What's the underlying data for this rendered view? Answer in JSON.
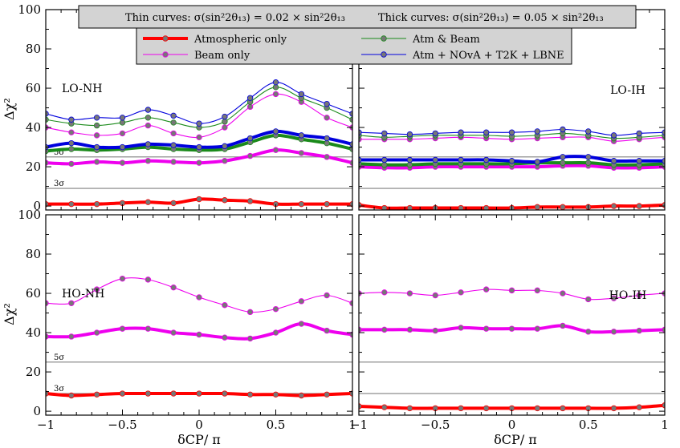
{
  "header": {
    "left_html": "Thin curves: σ(sin²2θ₁₃) = 0.02 × sin²2θ₁₃",
    "right_html": "Thick curves: σ(sin²2θ₁₃) = 0.05 × sin²2θ₁₃"
  },
  "legend": [
    "Atmospheric only",
    "Beam only",
    "Atm & Beam",
    "Atm + NOvA + T2K + LBNE"
  ],
  "axes": {
    "xlabel": "δCP/ π",
    "ylabel": "Δχ²",
    "xticks": [
      "−1",
      "−0.5",
      "0",
      "0.5",
      "1"
    ],
    "yticks": [
      "0",
      "20",
      "40",
      "60",
      "80",
      "100"
    ]
  },
  "colors": {
    "atm": "#ff0000",
    "beam": "#ee00ee",
    "atmbeam": "#1a8a1a",
    "all": "#0000dd",
    "marker_fill": "#777777",
    "header_bg": "#d3d3d3",
    "sigma_line": "#808080"
  },
  "chart_data": [
    {
      "type": "line",
      "panel_label": "LO-NH",
      "sigma_labels": [
        "5σ",
        "3σ"
      ],
      "sigma_levels": [
        25,
        9
      ],
      "x": [
        -1,
        -0.833,
        -0.667,
        -0.5,
        -0.333,
        -0.167,
        0,
        0.167,
        0.333,
        0.5,
        0.667,
        0.833,
        1
      ],
      "xlim": [
        -1,
        1
      ],
      "ylim": [
        -2,
        100
      ],
      "series": [
        {
          "name": "Atmospheric only",
          "key": "atm",
          "width": "thick",
          "values": [
            1,
            1,
            1,
            1.5,
            2,
            1.5,
            3.5,
            3,
            2.5,
            1,
            1,
            1,
            1
          ]
        },
        {
          "name": "Beam only",
          "key": "beam",
          "width": "thick",
          "values": [
            22,
            21.5,
            22.5,
            22,
            23,
            22.5,
            22,
            23,
            25.5,
            28.5,
            27,
            25,
            22
          ]
        },
        {
          "name": "Atm & Beam",
          "key": "atmbeam",
          "width": "thick",
          "values": [
            28,
            29,
            28.5,
            29,
            30,
            29,
            28.5,
            29,
            32.5,
            36,
            34,
            32,
            29
          ]
        },
        {
          "name": "Atm + NOvA + T2K + LBNE",
          "key": "all",
          "width": "thick",
          "values": [
            30,
            32,
            30,
            30,
            31.5,
            31,
            30,
            30.5,
            34.5,
            38,
            36,
            34.5,
            31.5
          ]
        },
        {
          "name": "Beam only",
          "key": "beam",
          "width": "thin",
          "values": [
            40,
            37.5,
            36,
            37,
            41,
            37,
            35,
            40,
            50.5,
            57,
            53,
            45,
            40
          ]
        },
        {
          "name": "Atm & Beam",
          "key": "atmbeam",
          "width": "thin",
          "values": [
            44,
            42,
            41,
            42.5,
            45,
            42.5,
            40,
            43,
            53,
            60.5,
            55,
            50,
            44
          ]
        },
        {
          "name": "Atm + NOvA + T2K + LBNE",
          "key": "all",
          "width": "thin",
          "values": [
            47,
            44,
            45,
            45,
            49,
            46,
            42,
            45.5,
            55,
            63,
            57,
            52,
            47
          ]
        }
      ]
    },
    {
      "type": "line",
      "panel_label": "LO-IH",
      "sigma_labels": [],
      "sigma_levels": [
        25,
        9
      ],
      "x": [
        -1,
        -0.833,
        -0.667,
        -0.5,
        -0.333,
        -0.167,
        0,
        0.167,
        0.333,
        0.5,
        0.667,
        0.833,
        1
      ],
      "xlim": [
        -1,
        1
      ],
      "ylim": [
        -2,
        100
      ],
      "series": [
        {
          "name": "Atmospheric only",
          "key": "atm",
          "width": "thick",
          "values": [
            0.5,
            -1,
            -1,
            -1,
            -1,
            -1,
            -1,
            -0.5,
            -0.5,
            -0.5,
            0,
            0,
            0.5
          ]
        },
        {
          "name": "Beam only",
          "key": "beam",
          "width": "thick",
          "values": [
            20,
            19.5,
            19.5,
            20,
            20,
            20,
            20,
            20,
            20.5,
            20.5,
            19.5,
            19.5,
            20
          ]
        },
        {
          "name": "Atm & Beam",
          "key": "atmbeam",
          "width": "thick",
          "values": [
            21.5,
            21,
            21,
            21.5,
            21.5,
            21.5,
            21.5,
            22,
            22,
            22,
            21,
            21,
            21.5
          ]
        },
        {
          "name": "Atm + NOvA + T2K + LBNE",
          "key": "all",
          "width": "thick",
          "values": [
            23.5,
            23.5,
            23.5,
            23.5,
            23.5,
            23.5,
            23,
            22.5,
            25,
            25,
            23,
            23,
            23
          ]
        },
        {
          "name": "Beam only",
          "key": "beam",
          "width": "thin",
          "values": [
            34,
            34,
            34,
            34.5,
            35,
            34.5,
            34,
            34.5,
            35,
            35,
            33,
            34,
            35
          ]
        },
        {
          "name": "Atm & Beam",
          "key": "atmbeam",
          "width": "thin",
          "values": [
            36,
            35,
            35.5,
            36,
            36,
            36,
            35.5,
            36,
            37,
            36,
            34.5,
            35,
            36
          ]
        },
        {
          "name": "Atm + NOvA + T2K + LBNE",
          "key": "all",
          "width": "thin",
          "values": [
            37.5,
            37,
            36.5,
            37,
            37.5,
            37.5,
            37.5,
            38,
            39,
            38,
            36,
            37,
            37.5
          ]
        }
      ]
    },
    {
      "type": "line",
      "panel_label": "HO-NH",
      "sigma_labels": [
        "5σ",
        "3σ"
      ],
      "sigma_levels": [
        25,
        9
      ],
      "x": [
        -1,
        -0.833,
        -0.667,
        -0.5,
        -0.333,
        -0.167,
        0,
        0.167,
        0.333,
        0.5,
        0.667,
        0.833,
        1
      ],
      "xlim": [
        -1,
        1
      ],
      "ylim": [
        -2,
        100
      ],
      "series": [
        {
          "name": "Atmospheric only",
          "key": "atm",
          "width": "thick",
          "values": [
            9,
            8,
            8.5,
            9,
            9,
            9,
            9,
            9,
            8.5,
            8.5,
            8,
            8.5,
            9
          ]
        },
        {
          "name": "Beam only",
          "key": "beam",
          "width": "thick",
          "values": [
            38,
            38,
            40,
            42,
            42,
            40,
            39,
            37.5,
            37,
            40,
            44.5,
            41,
            39
          ]
        },
        {
          "name": "Beam only",
          "key": "beam",
          "width": "thin",
          "values": [
            55,
            55,
            62,
            67.5,
            67,
            63,
            58,
            54,
            50.5,
            52,
            56,
            59,
            55
          ]
        }
      ]
    },
    {
      "type": "line",
      "panel_label": "HO-IH",
      "sigma_labels": [],
      "sigma_levels": [
        25,
        9
      ],
      "x": [
        -1,
        -0.833,
        -0.667,
        -0.5,
        -0.333,
        -0.167,
        0,
        0.167,
        0.333,
        0.5,
        0.667,
        0.833,
        1
      ],
      "xlim": [
        -1,
        1
      ],
      "ylim": [
        -2,
        100
      ],
      "series": [
        {
          "name": "Atmospheric only",
          "key": "atm",
          "width": "thick",
          "values": [
            2.5,
            2,
            1.5,
            1.5,
            1.5,
            1.5,
            1.5,
            1.5,
            1.5,
            1.5,
            1.5,
            2,
            3
          ]
        },
        {
          "name": "Beam only",
          "key": "beam",
          "width": "thick",
          "values": [
            41.5,
            41.5,
            41.5,
            41,
            42.5,
            42,
            42,
            42,
            43.5,
            40.5,
            40.5,
            41,
            41.5
          ]
        },
        {
          "name": "Beam only",
          "key": "beam",
          "width": "thin",
          "values": [
            60,
            60.5,
            60,
            59,
            60.5,
            62,
            61.5,
            61.5,
            60,
            57,
            57.5,
            59,
            60
          ]
        }
      ]
    }
  ]
}
